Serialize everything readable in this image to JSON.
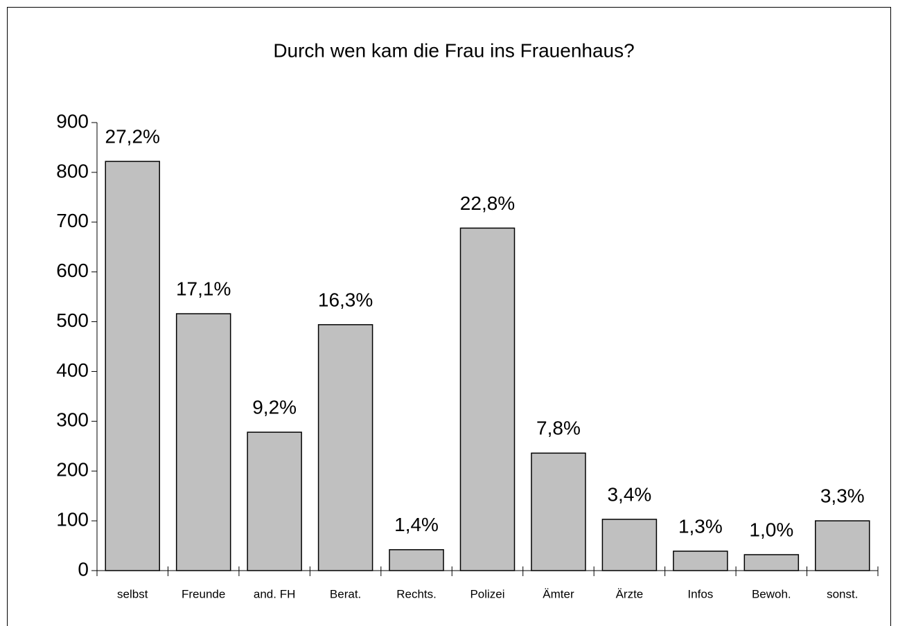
{
  "chart_data": {
    "type": "bar",
    "title": "Durch wen kam die Frau ins Frauenhaus?",
    "categories": [
      "selbst",
      "Freunde",
      "and. FH",
      "Berat.",
      "Rechts.",
      "Polizei",
      "Ämter",
      "Ärzte",
      "Infos",
      "Bewoh.",
      "sonst."
    ],
    "values": [
      822,
      516,
      278,
      494,
      42,
      688,
      236,
      103,
      39,
      32,
      100
    ],
    "data_labels": [
      "27,2%",
      "17,1%",
      "9,2%",
      "16,3%",
      "1,4%",
      "22,8%",
      "7,8%",
      "3,4%",
      "1,3%",
      "1,0%",
      "3,3%"
    ],
    "color": "#c0c0c0",
    "ylim": [
      0,
      900
    ],
    "yticks": [
      0,
      100,
      200,
      300,
      400,
      500,
      600,
      700,
      800,
      900
    ],
    "grid": false
  }
}
